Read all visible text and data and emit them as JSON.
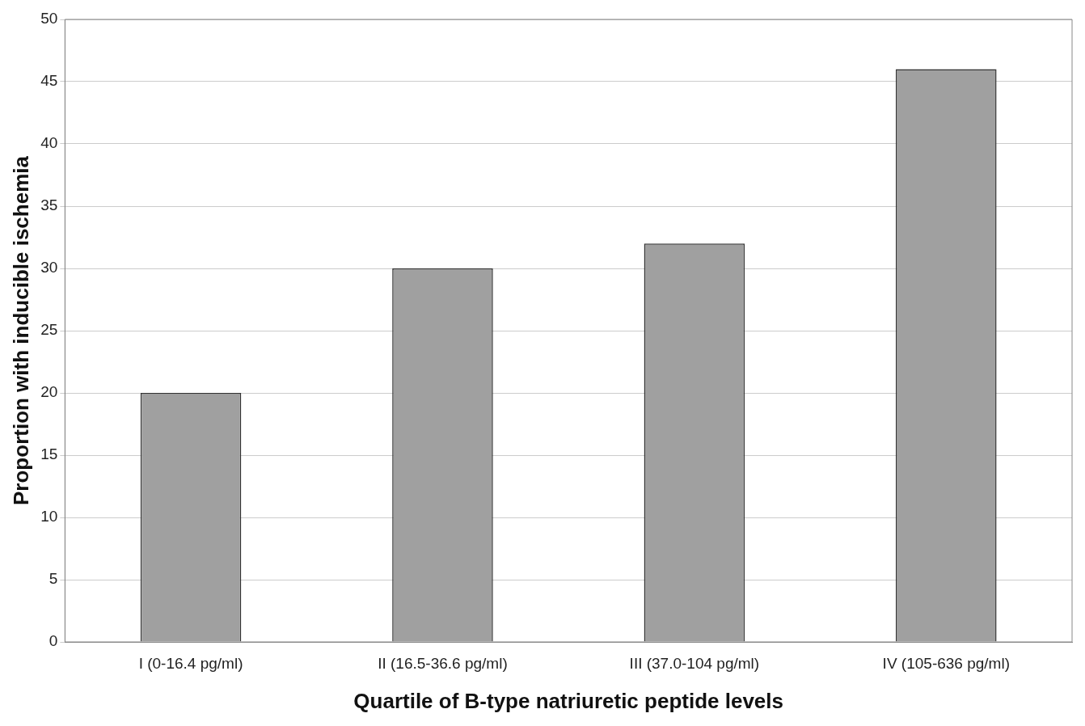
{
  "chart_data": {
    "type": "bar",
    "xlabel": "Quartile of B-type natriuretic peptide levels",
    "ylabel": "Proportion with inducible ischemia",
    "categories": [
      "I (0-16.4 pg/ml)",
      "II (16.5-36.6 pg/ml)",
      "III (37.0-104 pg/ml)",
      "IV (105-636 pg/ml)"
    ],
    "values": [
      20,
      30,
      32,
      46
    ],
    "color": "#a0a0a0",
    "ylim": [
      0,
      50
    ],
    "yticks": [
      0,
      5,
      10,
      15,
      20,
      25,
      30,
      35,
      40,
      45,
      50
    ],
    "grid": "y",
    "legend": false
  }
}
